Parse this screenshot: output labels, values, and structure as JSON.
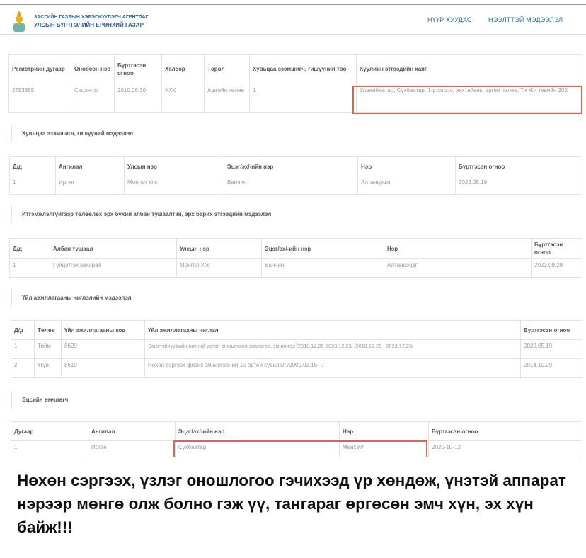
{
  "header": {
    "org_line1": "ЗАСГИЙН ГАЗРЫН ХЭРЭГЖҮҮЛЭГЧ АГЕНТЛАГ",
    "org_line2": "УЛСЫН БҮРТГЭЛИЙН ЕРӨНХИЙ ГАЗАР",
    "nav": [
      "НҮҮР ХУУДАС",
      "НЭЭЛТТЭЙ МЭДЭЭЛЭЛ"
    ]
  },
  "entity": {
    "headers": [
      "Регистрийн дугаар",
      "Оноосон нэр",
      "Бүртгэсэн огноо",
      "Хэлбэр",
      "Төрөл",
      "Хувьцаа эзэмшигч, гишүүний тоо",
      "Хуулийн этгээдийн хаяг"
    ],
    "row": [
      "2783355",
      "Сэцэнгоо",
      "2010.08.30",
      "ХХК",
      "Ашгийн төлөө",
      "1",
      "Улаанбаатар, Сүхбаатар, 1-р хороо, энхтайвны өргөн чөлөө, Ти Жи төвийн 202"
    ]
  },
  "shareholders": {
    "title": "Хувьцаа эзэмшигч, гишүүний мэдээлэл",
    "headers": [
      "Д/д",
      "Ангилал",
      "Улсын нэр",
      "Эцэг/эх/-ийн нэр",
      "Нэр",
      "Бүртгэсэн огноо"
    ],
    "rows": [
      [
        "1",
        "Иргэн",
        "Монгол Улс",
        "Ванчин",
        "Алтанцэцэг",
        "2022.05.19"
      ]
    ]
  },
  "officials": {
    "title": "Итгэмжлэлгүйгээр төлөөлөх эрх бүхий албан тушаалтан, эрх барих этгээдийн мэдээлэл",
    "headers": [
      "Д/д",
      "Албан тушаал",
      "Улсын нэр",
      "Эцэг/эх/-ийн нэр",
      "Нэр",
      "Бүртгэсэн огноо"
    ],
    "rows": [
      [
        "1",
        "Гүйцэтгэх захирал",
        "Монгол Улс",
        "Ванчин",
        "Алтанцэцэг",
        "2022.09.29"
      ]
    ]
  },
  "activities": {
    "title": "Үйл ажиллагааны чиглэлийн мэдээлэл",
    "headers": [
      "Д/д",
      "Төлөв",
      "Үйл ажиллагааны код",
      "Үйл ажиллагааны чиглэл",
      "Бүртгэсэн огноо"
    ],
    "rows": [
      [
        "1",
        "Тийм",
        "8620",
        "Эмэгтэйчүүдийн өвчний үзлэг, оношлогоо зөвлөгөө, эмчилгээ /2018.12.26-2023.12.23/ /2018.12.26 - 2023.12.23/",
        "2022.05.19"
      ],
      [
        "2",
        "Үгүй",
        "8610",
        "Нөхөн сэргээх физик эмчилгээний 15 ортой сувилал /2009.03.16 - /",
        "2014.10.29"
      ]
    ]
  },
  "owners": {
    "title": "Эцсийн өмчлөгч",
    "headers": [
      "Дугаар",
      "Ангилал",
      "Эцэг/эх/-ийн нэр",
      "Нэр",
      "Бүртгэсэн огноо"
    ],
    "rows": [
      [
        "1",
        "Иргэн",
        "Сүхбаатар",
        "Мөнхзул",
        "2020-10-12"
      ]
    ]
  },
  "caption": "Нөхөн сэргээх, үзлэг оношлогоо гэчихээд үр хөндөж, үнэтэй аппарат нэрээр мөнгө олж болно гэж үү, тангараг өргөсөн эмч хүн, эх хүн байж!!!",
  "highlight_color": "#d06a55"
}
